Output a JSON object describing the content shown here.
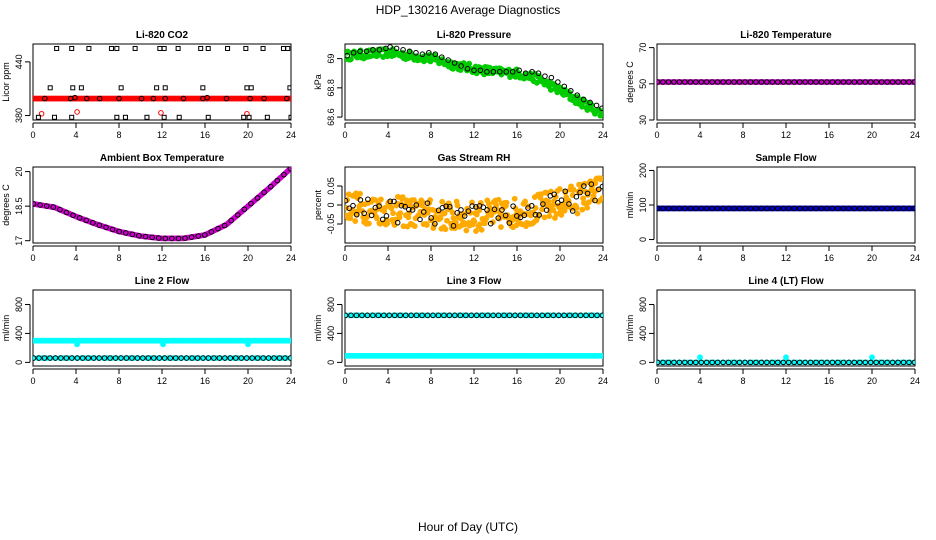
{
  "figure": {
    "title": "HDP_130216  Average Diagnostics",
    "xlabel": "Hour of Day (UTC)"
  },
  "colors": {
    "red": "#ff0000",
    "green": "#00cc00",
    "magenta": "#cc00cc",
    "orange": "#ffaa00",
    "blue": "#0000cc",
    "cyan": "#00ffff",
    "black": "#000000"
  },
  "chart_data": [
    {
      "id": "co2",
      "type": "scatter",
      "title": "Li-820 CO2",
      "ylabel": "Licor ppm",
      "xlim": [
        0,
        24
      ],
      "xticks": [
        0,
        4,
        8,
        12,
        16,
        20,
        24
      ],
      "ylim": [
        375,
        460
      ],
      "yticks": [
        380,
        440
      ],
      "series": [
        {
          "name": "co2_fill",
          "color": "red",
          "shape": "dot",
          "gen": "const",
          "value": 399,
          "n": 140
        },
        {
          "name": "co2_red_hollow",
          "color": "red",
          "shape": "circle",
          "x": [
            0.8,
            4.1,
            11.9,
            19.9
          ],
          "y": [
            382,
            384,
            383,
            382
          ]
        },
        {
          "name": "co2_avg",
          "color": "black",
          "shape": "circle",
          "x": [
            1.1,
            3.5,
            3.9,
            5.0,
            6.2,
            8.0,
            10.1,
            11.2,
            12.3,
            14.0,
            15.8,
            16.2,
            18.0,
            20.2,
            21.5,
            23.6
          ],
          "y": [
            399,
            399,
            400,
            399,
            399,
            399,
            399,
            399,
            399,
            399,
            399,
            400,
            399,
            399,
            399,
            399
          ]
        },
        {
          "name": "co2_max",
          "color": "black",
          "shape": "square",
          "x": [
            2.2,
            3.6,
            5.2,
            7.3,
            7.8,
            9.5,
            11.8,
            12.2,
            13.5,
            15.6,
            16.3,
            18.1,
            19.8,
            21.4,
            23.3,
            23.7
          ],
          "y": [
            455,
            455,
            455,
            455,
            455,
            455,
            455,
            455,
            455,
            455,
            455,
            455,
            455,
            455,
            455,
            455
          ]
        },
        {
          "name": "co2_mid",
          "color": "black",
          "shape": "square",
          "x": [
            1.6,
            3.7,
            4.5,
            8.2,
            11.5,
            12.3,
            15.8,
            19.9,
            20.3,
            23.9
          ],
          "y": [
            411,
            411,
            411,
            411,
            411,
            411,
            411,
            411,
            411,
            411
          ]
        },
        {
          "name": "co2_min",
          "color": "black",
          "shape": "square",
          "x": [
            0.5,
            2.0,
            3.6,
            7.8,
            8.6,
            10.6,
            12.2,
            13.6,
            16.3,
            19.6,
            20.1,
            21.8,
            24.0
          ],
          "y": [
            378,
            378,
            378,
            378,
            378,
            378,
            378,
            378,
            378,
            378,
            378,
            378,
            378
          ]
        }
      ]
    },
    {
      "id": "pressure",
      "type": "scatter",
      "title": "Li-820 Pressure",
      "ylabel": "kPa",
      "xlim": [
        0,
        24
      ],
      "xticks": [
        0,
        4,
        8,
        12,
        16,
        20,
        24
      ],
      "ylim": [
        68.58,
        69.1
      ],
      "yticks": [
        68.6,
        68.8,
        69.0
      ],
      "series": [
        {
          "name": "pressure_band",
          "color": "green",
          "shape": "dot",
          "gen": "band",
          "xs": [
            0,
            2,
            4,
            6,
            8,
            10,
            12,
            14,
            16,
            18,
            20,
            22,
            24
          ],
          "ys": [
            69.02,
            69.03,
            69.04,
            69.02,
            69.0,
            68.96,
            68.93,
            68.91,
            68.9,
            68.86,
            68.78,
            68.7,
            68.62
          ],
          "spread": 0.03,
          "n": 240
        },
        {
          "name": "pressure_avg",
          "color": "black",
          "shape": "circle",
          "x": [
            0.2,
            0.8,
            1.4,
            2.0,
            2.6,
            3.2,
            3.8,
            4.2,
            4.8,
            5.4,
            6.0,
            6.6,
            7.2,
            7.8,
            8.4,
            9.0,
            9.6,
            10.2,
            10.8,
            11.4,
            12.0,
            12.6,
            13.2,
            13.8,
            14.4,
            15.0,
            15.6,
            16.2,
            16.8,
            17.4,
            18.0,
            18.6,
            19.2,
            19.8,
            20.4,
            21.0,
            21.6,
            22.2,
            22.8,
            23.4,
            23.9
          ],
          "y": [
            69.02,
            69.04,
            69.05,
            69.05,
            69.06,
            69.06,
            69.07,
            69.08,
            69.07,
            69.06,
            69.05,
            69.04,
            69.03,
            69.04,
            69.03,
            69.01,
            68.99,
            68.97,
            68.95,
            68.93,
            68.92,
            68.92,
            68.91,
            68.91,
            68.91,
            68.91,
            68.91,
            68.92,
            68.9,
            68.91,
            68.9,
            68.88,
            68.87,
            68.84,
            68.81,
            68.78,
            68.75,
            68.72,
            68.7,
            68.68,
            68.66
          ]
        }
      ]
    },
    {
      "id": "licor_temp",
      "type": "scatter",
      "title": "Li-820 Temperature",
      "ylabel": "degrees C",
      "xlim": [
        0,
        24
      ],
      "xticks": [
        0,
        4,
        8,
        12,
        16,
        20,
        24
      ],
      "ylim": [
        30,
        72
      ],
      "yticks": [
        30,
        50,
        70
      ],
      "series": [
        {
          "name": "licor_temp_fill",
          "color": "magenta",
          "shape": "dot",
          "gen": "const",
          "value": 51,
          "n": 120
        },
        {
          "name": "licor_temp_avg",
          "color": "black",
          "shape": "circle",
          "gen": "const",
          "value": 51,
          "n": 48
        }
      ]
    },
    {
      "id": "box_temp",
      "type": "scatter",
      "title": "Ambient Box Temperature",
      "ylabel": "degrees C",
      "xlim": [
        0,
        24
      ],
      "xticks": [
        0,
        4,
        8,
        12,
        16,
        20,
        24
      ],
      "ylim": [
        16.9,
        20.2
      ],
      "yticks": [
        17.0,
        18.5,
        20.0
      ],
      "series": [
        {
          "name": "box_temp_fill",
          "color": "magenta",
          "shape": "dot",
          "gen": "curve",
          "xs": [
            0,
            2,
            4,
            6,
            8,
            10,
            12,
            14,
            16,
            18,
            20,
            22,
            24
          ],
          "ys": [
            18.6,
            18.45,
            18.05,
            17.7,
            17.4,
            17.2,
            17.1,
            17.1,
            17.25,
            17.7,
            18.5,
            19.3,
            20.15
          ],
          "n": 160
        },
        {
          "name": "box_temp_avg",
          "color": "black",
          "shape": "circle",
          "gen": "curve",
          "xs": [
            0,
            2,
            4,
            6,
            8,
            10,
            12,
            14,
            16,
            18,
            20,
            22,
            24
          ],
          "ys": [
            18.6,
            18.45,
            18.05,
            17.7,
            17.4,
            17.2,
            17.1,
            17.1,
            17.25,
            17.7,
            18.5,
            19.3,
            20.15
          ],
          "n": 40
        }
      ]
    },
    {
      "id": "rh",
      "type": "scatter",
      "title": "Gas Stream RH",
      "ylabel": "percent",
      "xlim": [
        0,
        24
      ],
      "xticks": [
        0,
        4,
        8,
        12,
        16,
        20,
        24
      ],
      "ylim": [
        -0.1,
        0.1
      ],
      "yticks": [
        -0.05,
        0.0,
        0.05
      ],
      "series": [
        {
          "name": "rh_band",
          "color": "orange",
          "shape": "dot",
          "gen": "band",
          "xs": [
            0,
            2,
            4,
            6,
            8,
            10,
            12,
            14,
            16,
            18,
            20,
            22,
            24
          ],
          "ys": [
            0.0,
            -0.01,
            -0.015,
            -0.02,
            -0.025,
            -0.03,
            -0.03,
            -0.025,
            -0.02,
            -0.01,
            0.005,
            0.02,
            0.04
          ],
          "spread": 0.04,
          "n": 320
        },
        {
          "name": "rh_avg",
          "color": "black",
          "shape": "circle",
          "gen": "band",
          "xs": [
            0,
            2,
            4,
            6,
            8,
            10,
            12,
            14,
            16,
            18,
            20,
            22,
            24
          ],
          "ys": [
            0.0,
            -0.01,
            -0.015,
            -0.02,
            -0.025,
            -0.03,
            -0.03,
            -0.025,
            -0.02,
            -0.01,
            0.005,
            0.02,
            0.04
          ],
          "spread": 0.03,
          "n": 70
        }
      ]
    },
    {
      "id": "sample_flow",
      "type": "scatter",
      "title": "Sample Flow",
      "ylabel": "ml/min",
      "xlim": [
        0,
        24
      ],
      "xticks": [
        0,
        4,
        8,
        12,
        16,
        20,
        24
      ],
      "ylim": [
        -10,
        210
      ],
      "yticks": [
        0,
        100,
        200
      ],
      "series": [
        {
          "name": "sample_flow_fill",
          "color": "blue",
          "shape": "dot",
          "gen": "const",
          "value": 90,
          "n": 150
        },
        {
          "name": "sample_flow_avg",
          "color": "black",
          "shape": "circle",
          "gen": "const",
          "value": 90,
          "n": 48
        }
      ]
    },
    {
      "id": "line2",
      "type": "scatter",
      "title": "Line 2 Flow",
      "ylabel": "ml/min",
      "xlim": [
        0,
        24
      ],
      "xticks": [
        0,
        4,
        8,
        12,
        16,
        20,
        24
      ],
      "ylim": [
        -50,
        1000
      ],
      "yticks": [
        0,
        400,
        800
      ],
      "series": [
        {
          "name": "line2_high",
          "color": "cyan",
          "shape": "dot",
          "gen": "const",
          "value": 300,
          "n": 140
        },
        {
          "name": "line2_spikes",
          "color": "cyan",
          "shape": "dot",
          "x": [
            4.1,
            12.1,
            20.0
          ],
          "y": [
            250,
            250,
            250
          ]
        },
        {
          "name": "line2_low_fill",
          "color": "cyan",
          "shape": "dot",
          "gen": "const",
          "value": 60,
          "n": 60
        },
        {
          "name": "line2_low",
          "color": "black",
          "shape": "circle",
          "gen": "const",
          "value": 60,
          "n": 48
        }
      ]
    },
    {
      "id": "line3",
      "type": "scatter",
      "title": "Line 3 Flow",
      "ylabel": "ml/min",
      "xlim": [
        0,
        24
      ],
      "xticks": [
        0,
        4,
        8,
        12,
        16,
        20,
        24
      ],
      "ylim": [
        -50,
        1000
      ],
      "yticks": [
        0,
        400,
        800
      ],
      "series": [
        {
          "name": "line3_high_fill",
          "color": "cyan",
          "shape": "dot",
          "gen": "const",
          "value": 650,
          "n": 60
        },
        {
          "name": "line3_high",
          "color": "black",
          "shape": "circle",
          "gen": "const",
          "value": 650,
          "n": 48
        },
        {
          "name": "line3_low",
          "color": "cyan",
          "shape": "dot",
          "gen": "const",
          "value": 90,
          "n": 140
        }
      ]
    },
    {
      "id": "line4",
      "type": "scatter",
      "title": "Line 4 (LT) Flow",
      "ylabel": "ml/min",
      "xlim": [
        0,
        24
      ],
      "xticks": [
        0,
        4,
        8,
        12,
        16,
        20,
        24
      ],
      "ylim": [
        -50,
        1000
      ],
      "yticks": [
        0,
        400,
        800
      ],
      "series": [
        {
          "name": "line4_fill",
          "color": "cyan",
          "shape": "dot",
          "gen": "const",
          "value": 0,
          "n": 60
        },
        {
          "name": "line4_spikes",
          "color": "cyan",
          "shape": "dot",
          "x": [
            0.1,
            4.0,
            12.0,
            20.0
          ],
          "y": [
            0,
            70,
            70,
            70
          ]
        },
        {
          "name": "line4_avg",
          "color": "black",
          "shape": "circle",
          "gen": "const",
          "value": 0,
          "n": 48
        }
      ]
    }
  ]
}
